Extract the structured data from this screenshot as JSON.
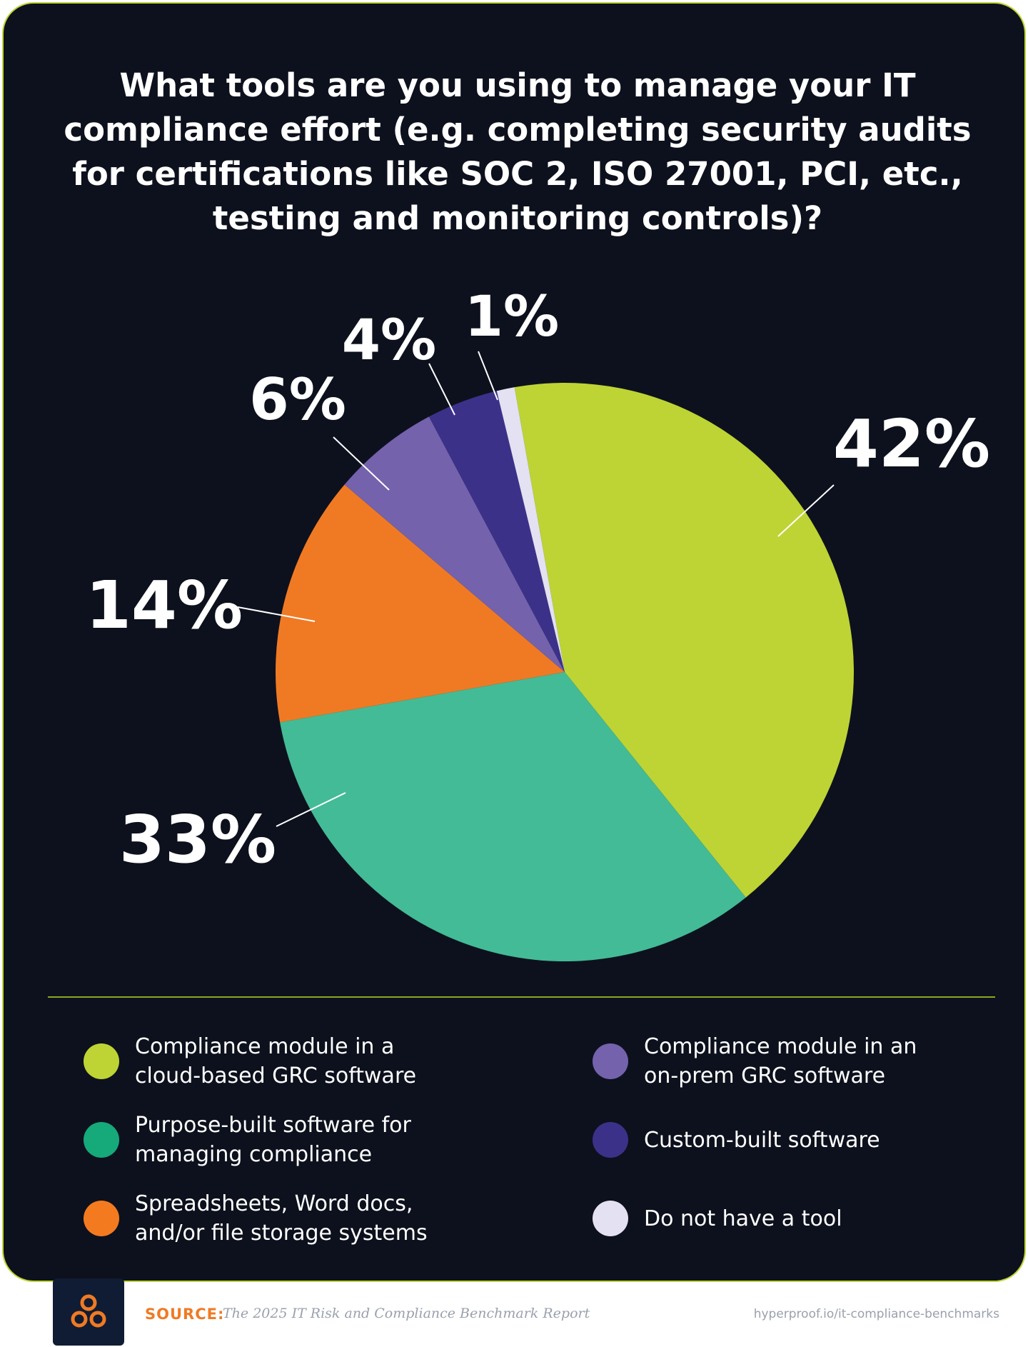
{
  "title": "What tools are you using to manage your IT compliance effort (e.g. completing security audits for certifications like SOC 2, ISO 27001, PCI, etc., testing and monitoring controls)?",
  "colors": {
    "background": "#0d111d",
    "border": "#bdd434",
    "text": "#ffffff",
    "accent": "#f07a24"
  },
  "chart_data": {
    "type": "pie",
    "title": "What tools are you using to manage your IT compliance effort (e.g. completing security audits for certifications like SOC 2, ISO 27001, PCI, etc., testing and monitoring controls)?",
    "unit": "%",
    "slices": [
      {
        "label": "Compliance module in a cloud-based GRC software",
        "value": 42,
        "display": "42%",
        "color": "#bdd434"
      },
      {
        "label": "Purpose-built software for managing compliance",
        "value": 33,
        "display": "33%",
        "color": "#43bb96"
      },
      {
        "label": "Spreadsheets, Word docs, and/or file storage systems",
        "value": 14,
        "display": "14%",
        "color": "#f07a24"
      },
      {
        "label": "Compliance module in an on-prem GRC software",
        "value": 6,
        "display": "6%",
        "color": "#7462ad"
      },
      {
        "label": "Custom-built software",
        "value": 4,
        "display": "4%",
        "color": "#3c3189"
      },
      {
        "label": "Do not have a tool",
        "value": 1,
        "display": "1%",
        "color": "#e3e1f2"
      }
    ],
    "legend_position": "bottom"
  },
  "legend": [
    {
      "label": "Compliance module in a\ncloud-based GRC software",
      "color": "#bdd434"
    },
    {
      "label": "Purpose-built software for\nmanaging compliance",
      "color": "#16a97a"
    },
    {
      "label": "Spreadsheets, Word docs,\nand/or file storage systems",
      "color": "#f47a20"
    },
    {
      "label": "Compliance module in an\non-prem GRC software",
      "color": "#7462ad"
    },
    {
      "label": "Custom-built software",
      "color": "#3c3189"
    },
    {
      "label": "Do not have a tool",
      "color": "#e3e1f2"
    }
  ],
  "footer": {
    "logo_icon": "three-circles-logo",
    "source_label": "SOURCE:",
    "source_text": "The 2025 IT Risk and Compliance Benchmark Report",
    "url": "hyperproof.io/it-compliance-benchmarks"
  }
}
